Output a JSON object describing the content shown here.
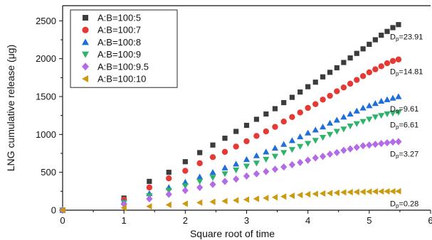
{
  "chart_data": {
    "type": "scatter",
    "xlabel": "Square root of time",
    "ylabel": "LNG cumulative release (μg)",
    "xlim": [
      0,
      6
    ],
    "ylim": [
      0,
      2700
    ],
    "x_ticks": [
      0,
      1,
      2,
      3,
      4,
      5,
      6
    ],
    "y_ticks": [
      0,
      500,
      1000,
      1500,
      2000,
      2500
    ],
    "legend_position": "top-left",
    "grid": false,
    "series": [
      {
        "name": "A:B=100:5",
        "marker": "square",
        "color": "#3c3c3c",
        "dp_label": "23.91",
        "x": [
          0,
          1,
          1.414,
          1.732,
          2,
          2.236,
          2.449,
          2.646,
          2.828,
          3,
          3.162,
          3.317,
          3.464,
          3.606,
          3.742,
          3.873,
          4,
          4.123,
          4.243,
          4.359,
          4.472,
          4.583,
          4.69,
          4.796,
          4.899,
          5,
          5.099,
          5.196,
          5.292,
          5.385,
          5.477
        ],
        "y": [
          0,
          160,
          380,
          500,
          640,
          760,
          860,
          950,
          1040,
          1120,
          1200,
          1270,
          1340,
          1420,
          1490,
          1560,
          1630,
          1690,
          1760,
          1820,
          1880,
          1950,
          2010,
          2070,
          2130,
          2190,
          2250,
          2310,
          2360,
          2410,
          2450
        ]
      },
      {
        "name": "A:B=100:7",
        "marker": "circle",
        "color": "#e53935",
        "dp_label": "14.81",
        "x": [
          0,
          1,
          1.414,
          1.732,
          2,
          2.236,
          2.449,
          2.646,
          2.828,
          3,
          3.162,
          3.317,
          3.464,
          3.606,
          3.742,
          3.873,
          4,
          4.123,
          4.243,
          4.359,
          4.472,
          4.583,
          4.69,
          4.796,
          4.899,
          5,
          5.099,
          5.196,
          5.292,
          5.385,
          5.477
        ],
        "y": [
          0,
          140,
          300,
          420,
          520,
          620,
          700,
          770,
          840,
          910,
          980,
          1040,
          1100,
          1170,
          1230,
          1290,
          1350,
          1400,
          1460,
          1510,
          1570,
          1620,
          1670,
          1720,
          1770,
          1820,
          1860,
          1900,
          1940,
          1970,
          1990
        ]
      },
      {
        "name": "A:B=100:8",
        "marker": "triangle-up",
        "color": "#1e6fd9",
        "dp_label": "9.61",
        "x": [
          0,
          1,
          1.414,
          1.732,
          2,
          2.236,
          2.449,
          2.646,
          2.828,
          3,
          3.162,
          3.317,
          3.464,
          3.606,
          3.742,
          3.873,
          4,
          4.123,
          4.243,
          4.359,
          4.472,
          4.583,
          4.69,
          4.796,
          4.899,
          5,
          5.099,
          5.196,
          5.292,
          5.385,
          5.477
        ],
        "y": [
          0,
          110,
          220,
          300,
          370,
          440,
          500,
          560,
          610,
          670,
          720,
          770,
          820,
          870,
          920,
          970,
          1020,
          1060,
          1100,
          1150,
          1190,
          1230,
          1270,
          1310,
          1350,
          1380,
          1410,
          1440,
          1460,
          1480,
          1500
        ]
      },
      {
        "name": "A:B=100:9",
        "marker": "triangle-down",
        "color": "#2fb36b",
        "dp_label": "6.61",
        "x": [
          0,
          1,
          1.414,
          1.732,
          2,
          2.236,
          2.449,
          2.646,
          2.828,
          3,
          3.162,
          3.317,
          3.464,
          3.606,
          3.742,
          3.873,
          4,
          4.123,
          4.243,
          4.359,
          4.472,
          4.583,
          4.69,
          4.796,
          4.899,
          5,
          5.099,
          5.196,
          5.292,
          5.385,
          5.477
        ],
        "y": [
          0,
          100,
          190,
          260,
          320,
          380,
          430,
          480,
          530,
          580,
          620,
          670,
          710,
          760,
          800,
          840,
          880,
          920,
          960,
          1000,
          1040,
          1070,
          1110,
          1140,
          1170,
          1200,
          1230,
          1250,
          1270,
          1280,
          1290
        ]
      },
      {
        "name": "A:B=100:9.5",
        "marker": "diamond",
        "color": "#b36be6",
        "dp_label": "3.27",
        "x": [
          0,
          1,
          1.414,
          1.732,
          2,
          2.236,
          2.449,
          2.646,
          2.828,
          3,
          3.162,
          3.317,
          3.464,
          3.606,
          3.742,
          3.873,
          4,
          4.123,
          4.243,
          4.359,
          4.472,
          4.583,
          4.69,
          4.796,
          4.899,
          5,
          5.099,
          5.196,
          5.292,
          5.385,
          5.477
        ],
        "y": [
          0,
          80,
          150,
          210,
          260,
          300,
          340,
          380,
          410,
          450,
          480,
          510,
          540,
          570,
          600,
          630,
          660,
          690,
          710,
          740,
          760,
          790,
          810,
          830,
          850,
          860,
          870,
          880,
          890,
          900,
          905
        ]
      },
      {
        "name": "A:B=100:10",
        "marker": "triangle-left",
        "color": "#cc9a0e",
        "dp_label": "0.28",
        "x": [
          0,
          1,
          1.414,
          1.732,
          2,
          2.236,
          2.449,
          2.646,
          2.828,
          3,
          3.162,
          3.317,
          3.464,
          3.606,
          3.742,
          3.873,
          4,
          4.123,
          4.243,
          4.359,
          4.472,
          4.583,
          4.69,
          4.796,
          4.899,
          5,
          5.099,
          5.196,
          5.292,
          5.385,
          5.477
        ],
        "y": [
          0,
          30,
          50,
          70,
          85,
          100,
          110,
          120,
          130,
          140,
          150,
          160,
          170,
          180,
          190,
          200,
          210,
          215,
          220,
          225,
          230,
          235,
          238,
          240,
          242,
          245,
          246,
          247,
          248,
          249,
          250
        ]
      }
    ]
  }
}
